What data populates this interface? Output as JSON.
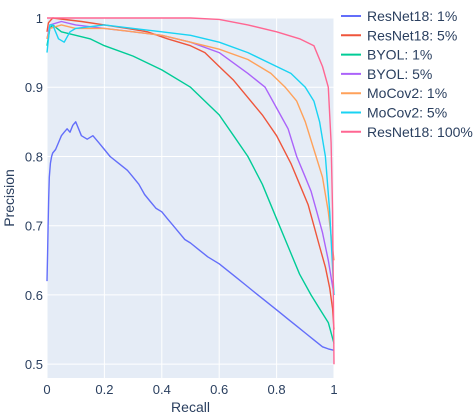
{
  "chart_data": {
    "type": "line",
    "title": "",
    "xlabel": "Recall",
    "ylabel": "Precision",
    "xlim": [
      0,
      1
    ],
    "ylim": [
      0.48,
      1.0
    ],
    "xticks": [
      0,
      0.2,
      0.4,
      0.6,
      0.8,
      1
    ],
    "xtick_labels": [
      "0",
      "0.2",
      "0.4",
      "0.6",
      "0.8",
      "1"
    ],
    "yticks": [
      0.5,
      0.6,
      0.7,
      0.8,
      0.9,
      1
    ],
    "ytick_labels": [
      "0.5",
      "0.6",
      "0.7",
      "0.8",
      "0.9",
      "1"
    ],
    "grid": true,
    "plot_background": "#e5ecf6",
    "legend_position": "right",
    "series": [
      {
        "name": "ResNet18: 1%",
        "color": "#636efa",
        "points": [
          [
            0,
            0.62
          ],
          [
            0.002,
            0.66
          ],
          [
            0.004,
            0.7
          ],
          [
            0.006,
            0.74
          ],
          [
            0.008,
            0.77
          ],
          [
            0.012,
            0.79
          ],
          [
            0.016,
            0.8
          ],
          [
            0.02,
            0.805
          ],
          [
            0.03,
            0.81
          ],
          [
            0.04,
            0.82
          ],
          [
            0.05,
            0.83
          ],
          [
            0.06,
            0.835
          ],
          [
            0.07,
            0.84
          ],
          [
            0.08,
            0.835
          ],
          [
            0.09,
            0.845
          ],
          [
            0.1,
            0.85
          ],
          [
            0.11,
            0.84
          ],
          [
            0.12,
            0.83
          ],
          [
            0.14,
            0.825
          ],
          [
            0.16,
            0.83
          ],
          [
            0.18,
            0.82
          ],
          [
            0.2,
            0.81
          ],
          [
            0.22,
            0.8
          ],
          [
            0.25,
            0.79
          ],
          [
            0.28,
            0.78
          ],
          [
            0.3,
            0.77
          ],
          [
            0.32,
            0.76
          ],
          [
            0.34,
            0.745
          ],
          [
            0.36,
            0.735
          ],
          [
            0.38,
            0.725
          ],
          [
            0.4,
            0.72
          ],
          [
            0.42,
            0.71
          ],
          [
            0.44,
            0.7
          ],
          [
            0.46,
            0.69
          ],
          [
            0.48,
            0.68
          ],
          [
            0.5,
            0.675
          ],
          [
            0.53,
            0.665
          ],
          [
            0.56,
            0.655
          ],
          [
            0.6,
            0.645
          ],
          [
            0.63,
            0.635
          ],
          [
            0.66,
            0.625
          ],
          [
            0.69,
            0.615
          ],
          [
            0.72,
            0.605
          ],
          [
            0.75,
            0.595
          ],
          [
            0.78,
            0.585
          ],
          [
            0.81,
            0.575
          ],
          [
            0.84,
            0.565
          ],
          [
            0.87,
            0.555
          ],
          [
            0.9,
            0.545
          ],
          [
            0.93,
            0.535
          ],
          [
            0.96,
            0.525
          ],
          [
            0.98,
            0.522
          ],
          [
            1.0,
            0.52
          ]
        ]
      },
      {
        "name": "ResNet18: 5%",
        "color": "#ef553b",
        "points": [
          [
            0,
            0.98
          ],
          [
            0.005,
            0.993
          ],
          [
            0.02,
            1.0
          ],
          [
            0.12,
            0.995
          ],
          [
            0.2,
            0.99
          ],
          [
            0.28,
            0.985
          ],
          [
            0.35,
            0.98
          ],
          [
            0.42,
            0.97
          ],
          [
            0.5,
            0.96
          ],
          [
            0.55,
            0.95
          ],
          [
            0.6,
            0.93
          ],
          [
            0.65,
            0.91
          ],
          [
            0.7,
            0.885
          ],
          [
            0.75,
            0.86
          ],
          [
            0.8,
            0.83
          ],
          [
            0.85,
            0.79
          ],
          [
            0.88,
            0.76
          ],
          [
            0.91,
            0.73
          ],
          [
            0.93,
            0.7
          ],
          [
            0.95,
            0.67
          ],
          [
            0.97,
            0.64
          ],
          [
            0.985,
            0.61
          ],
          [
            0.995,
            0.58
          ],
          [
            1.0,
            0.55
          ]
        ]
      },
      {
        "name": "BYOL: 1%",
        "color": "#00cc96",
        "points": [
          [
            0,
            0.96
          ],
          [
            0.01,
            0.985
          ],
          [
            0.02,
            0.99
          ],
          [
            0.05,
            0.98
          ],
          [
            0.1,
            0.975
          ],
          [
            0.15,
            0.97
          ],
          [
            0.2,
            0.96
          ],
          [
            0.3,
            0.945
          ],
          [
            0.4,
            0.925
          ],
          [
            0.5,
            0.9
          ],
          [
            0.55,
            0.88
          ],
          [
            0.6,
            0.86
          ],
          [
            0.65,
            0.83
          ],
          [
            0.7,
            0.8
          ],
          [
            0.75,
            0.76
          ],
          [
            0.8,
            0.71
          ],
          [
            0.84,
            0.67
          ],
          [
            0.88,
            0.63
          ],
          [
            0.92,
            0.6
          ],
          [
            0.95,
            0.58
          ],
          [
            0.98,
            0.56
          ],
          [
            1.0,
            0.53
          ]
        ]
      },
      {
        "name": "BYOL: 5%",
        "color": "#ab63fa",
        "points": [
          [
            0,
            0.97
          ],
          [
            0.01,
            0.99
          ],
          [
            0.05,
            0.995
          ],
          [
            0.1,
            0.99
          ],
          [
            0.2,
            0.985
          ],
          [
            0.3,
            0.98
          ],
          [
            0.4,
            0.975
          ],
          [
            0.5,
            0.965
          ],
          [
            0.6,
            0.95
          ],
          [
            0.7,
            0.92
          ],
          [
            0.76,
            0.9
          ],
          [
            0.8,
            0.87
          ],
          [
            0.84,
            0.84
          ],
          [
            0.87,
            0.8
          ],
          [
            0.9,
            0.77
          ],
          [
            0.92,
            0.75
          ],
          [
            0.94,
            0.72
          ],
          [
            0.96,
            0.69
          ],
          [
            0.98,
            0.65
          ],
          [
            1.0,
            0.6
          ]
        ]
      },
      {
        "name": "MoCov2: 1%",
        "color": "#ffa15a",
        "points": [
          [
            0,
            0.97
          ],
          [
            0.01,
            0.985
          ],
          [
            0.05,
            0.99
          ],
          [
            0.1,
            0.985
          ],
          [
            0.2,
            0.985
          ],
          [
            0.3,
            0.98
          ],
          [
            0.4,
            0.975
          ],
          [
            0.5,
            0.965
          ],
          [
            0.6,
            0.955
          ],
          [
            0.7,
            0.94
          ],
          [
            0.78,
            0.92
          ],
          [
            0.83,
            0.9
          ],
          [
            0.87,
            0.88
          ],
          [
            0.9,
            0.85
          ],
          [
            0.93,
            0.81
          ],
          [
            0.96,
            0.77
          ],
          [
            0.98,
            0.72
          ],
          [
            1.0,
            0.65
          ]
        ]
      },
      {
        "name": "MoCov2: 5%",
        "color": "#19d3f3",
        "points": [
          [
            0,
            0.95
          ],
          [
            0.01,
            0.99
          ],
          [
            0.02,
            0.99
          ],
          [
            0.04,
            0.97
          ],
          [
            0.06,
            0.965
          ],
          [
            0.08,
            0.98
          ],
          [
            0.1,
            0.985
          ],
          [
            0.2,
            0.99
          ],
          [
            0.3,
            0.985
          ],
          [
            0.4,
            0.98
          ],
          [
            0.5,
            0.975
          ],
          [
            0.6,
            0.965
          ],
          [
            0.7,
            0.95
          ],
          [
            0.8,
            0.93
          ],
          [
            0.85,
            0.92
          ],
          [
            0.9,
            0.9
          ],
          [
            0.93,
            0.88
          ],
          [
            0.95,
            0.85
          ],
          [
            0.97,
            0.8
          ],
          [
            0.985,
            0.72
          ],
          [
            1.0,
            0.6
          ]
        ]
      },
      {
        "name": "ResNet18: 100%",
        "color": "#ff6692",
        "points": [
          [
            0,
            1.0
          ],
          [
            0.1,
            1.0
          ],
          [
            0.3,
            1.0
          ],
          [
            0.5,
            1.0
          ],
          [
            0.6,
            0.998
          ],
          [
            0.7,
            0.99
          ],
          [
            0.8,
            0.98
          ],
          [
            0.88,
            0.97
          ],
          [
            0.93,
            0.96
          ],
          [
            0.96,
            0.93
          ],
          [
            0.98,
            0.9
          ],
          [
            0.99,
            0.82
          ],
          [
            0.995,
            0.72
          ],
          [
            1.0,
            0.5
          ]
        ]
      }
    ]
  }
}
